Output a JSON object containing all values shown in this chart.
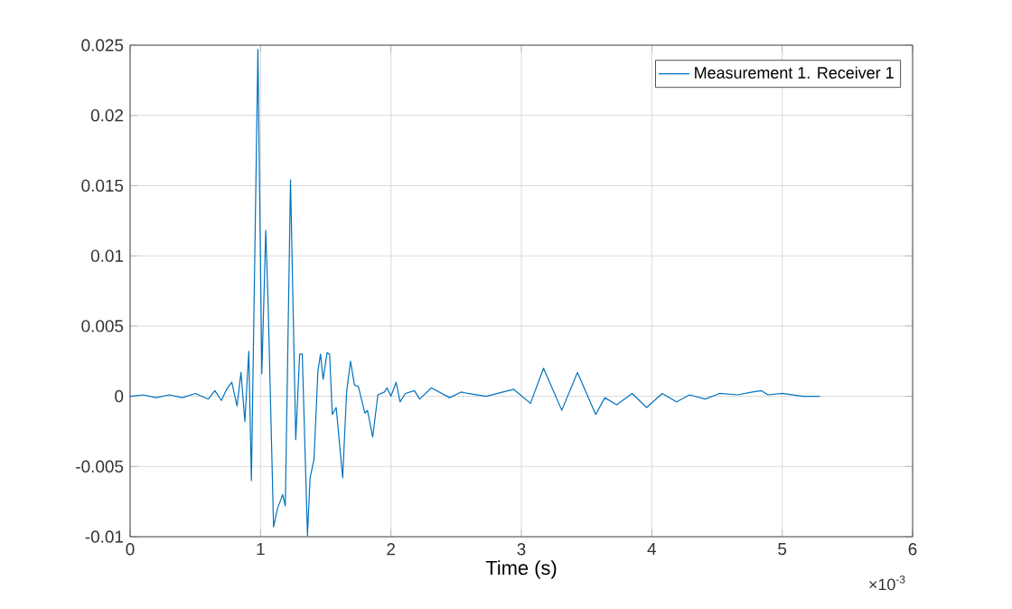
{
  "chart_data": {
    "type": "line",
    "xlabel": "Time (s)",
    "annotations": [
      "×10$^{-3}$"
    ],
    "xlim": [
      0,
      6
    ],
    "ylim": [
      -0.01,
      0.025
    ],
    "xticks": [
      0,
      1,
      2,
      3,
      4,
      5,
      6
    ],
    "yticks": [
      -0.01,
      -0.005,
      0,
      0.005,
      0.01,
      0.015,
      0.02,
      0.025
    ],
    "grid": true,
    "legend": "top right",
    "marker": "none",
    "line_style": "solid",
    "series": [
      {
        "name": "Measurement 1. Receiver 1",
        "color": "#0072bd",
        "x": [
          0,
          0.1,
          0.2,
          0.3,
          0.4,
          0.5,
          0.6,
          0.65,
          0.7,
          0.74,
          0.78,
          0.82,
          0.85,
          0.88,
          0.91,
          0.93,
          0.98,
          1.01,
          1.04,
          1.06,
          1.1,
          1.13,
          1.17,
          1.19,
          1.23,
          1.27,
          1.3,
          1.32,
          1.36,
          1.38,
          1.41,
          1.44,
          1.46,
          1.48,
          1.51,
          1.53,
          1.55,
          1.58,
          1.63,
          1.66,
          1.69,
          1.72,
          1.75,
          1.8,
          1.82,
          1.86,
          1.9,
          1.95,
          1.97,
          2.0,
          2.04,
          2.07,
          2.11,
          2.18,
          2.22,
          2.31,
          2.45,
          2.54,
          2.59,
          2.73,
          2.94,
          3.07,
          3.17,
          3.31,
          3.43,
          3.57,
          3.64,
          3.73,
          3.85,
          3.96,
          4.08,
          4.19,
          4.29,
          4.41,
          4.52,
          4.66,
          4.77,
          4.84,
          4.89,
          5.0,
          5.16,
          5.29
        ],
        "values": [
          0,
          0.0001,
          -0.0001,
          0.0001,
          -0.0001,
          0.0002,
          -0.0002,
          0.0004,
          -0.0003,
          0.0005,
          0.001,
          -0.0007,
          0.0017,
          -0.0018,
          0.0032,
          -0.006,
          0.0247,
          0.0016,
          0.0118,
          0.006,
          -0.0093,
          -0.008,
          -0.007,
          -0.0078,
          0.0154,
          -0.0031,
          0.003,
          0.003,
          -0.0099,
          -0.0058,
          -0.0045,
          0.0018,
          0.003,
          0.0012,
          0.0031,
          0.003,
          -0.0013,
          -0.0008,
          -0.0058,
          0.0003,
          0.0025,
          0.0008,
          0.0007,
          -0.0012,
          -0.001,
          -0.0029,
          0.0001,
          0.0003,
          0.0006,
          0,
          0.001,
          -0.0004,
          0.0002,
          0.0004,
          -0.0002,
          0.0006,
          -0.0001,
          0.0003,
          0.0002,
          0,
          0.0005,
          -0.0005,
          0.002,
          -0.001,
          0.0017,
          -0.0013,
          -0.0001,
          -0.0006,
          0.0002,
          -0.0008,
          0.0002,
          -0.0004,
          0.0001,
          -0.0002,
          0.0002,
          0.0001,
          0.0003,
          0.0004,
          0.0001,
          0.0002,
          0,
          0
        ]
      }
    ]
  }
}
